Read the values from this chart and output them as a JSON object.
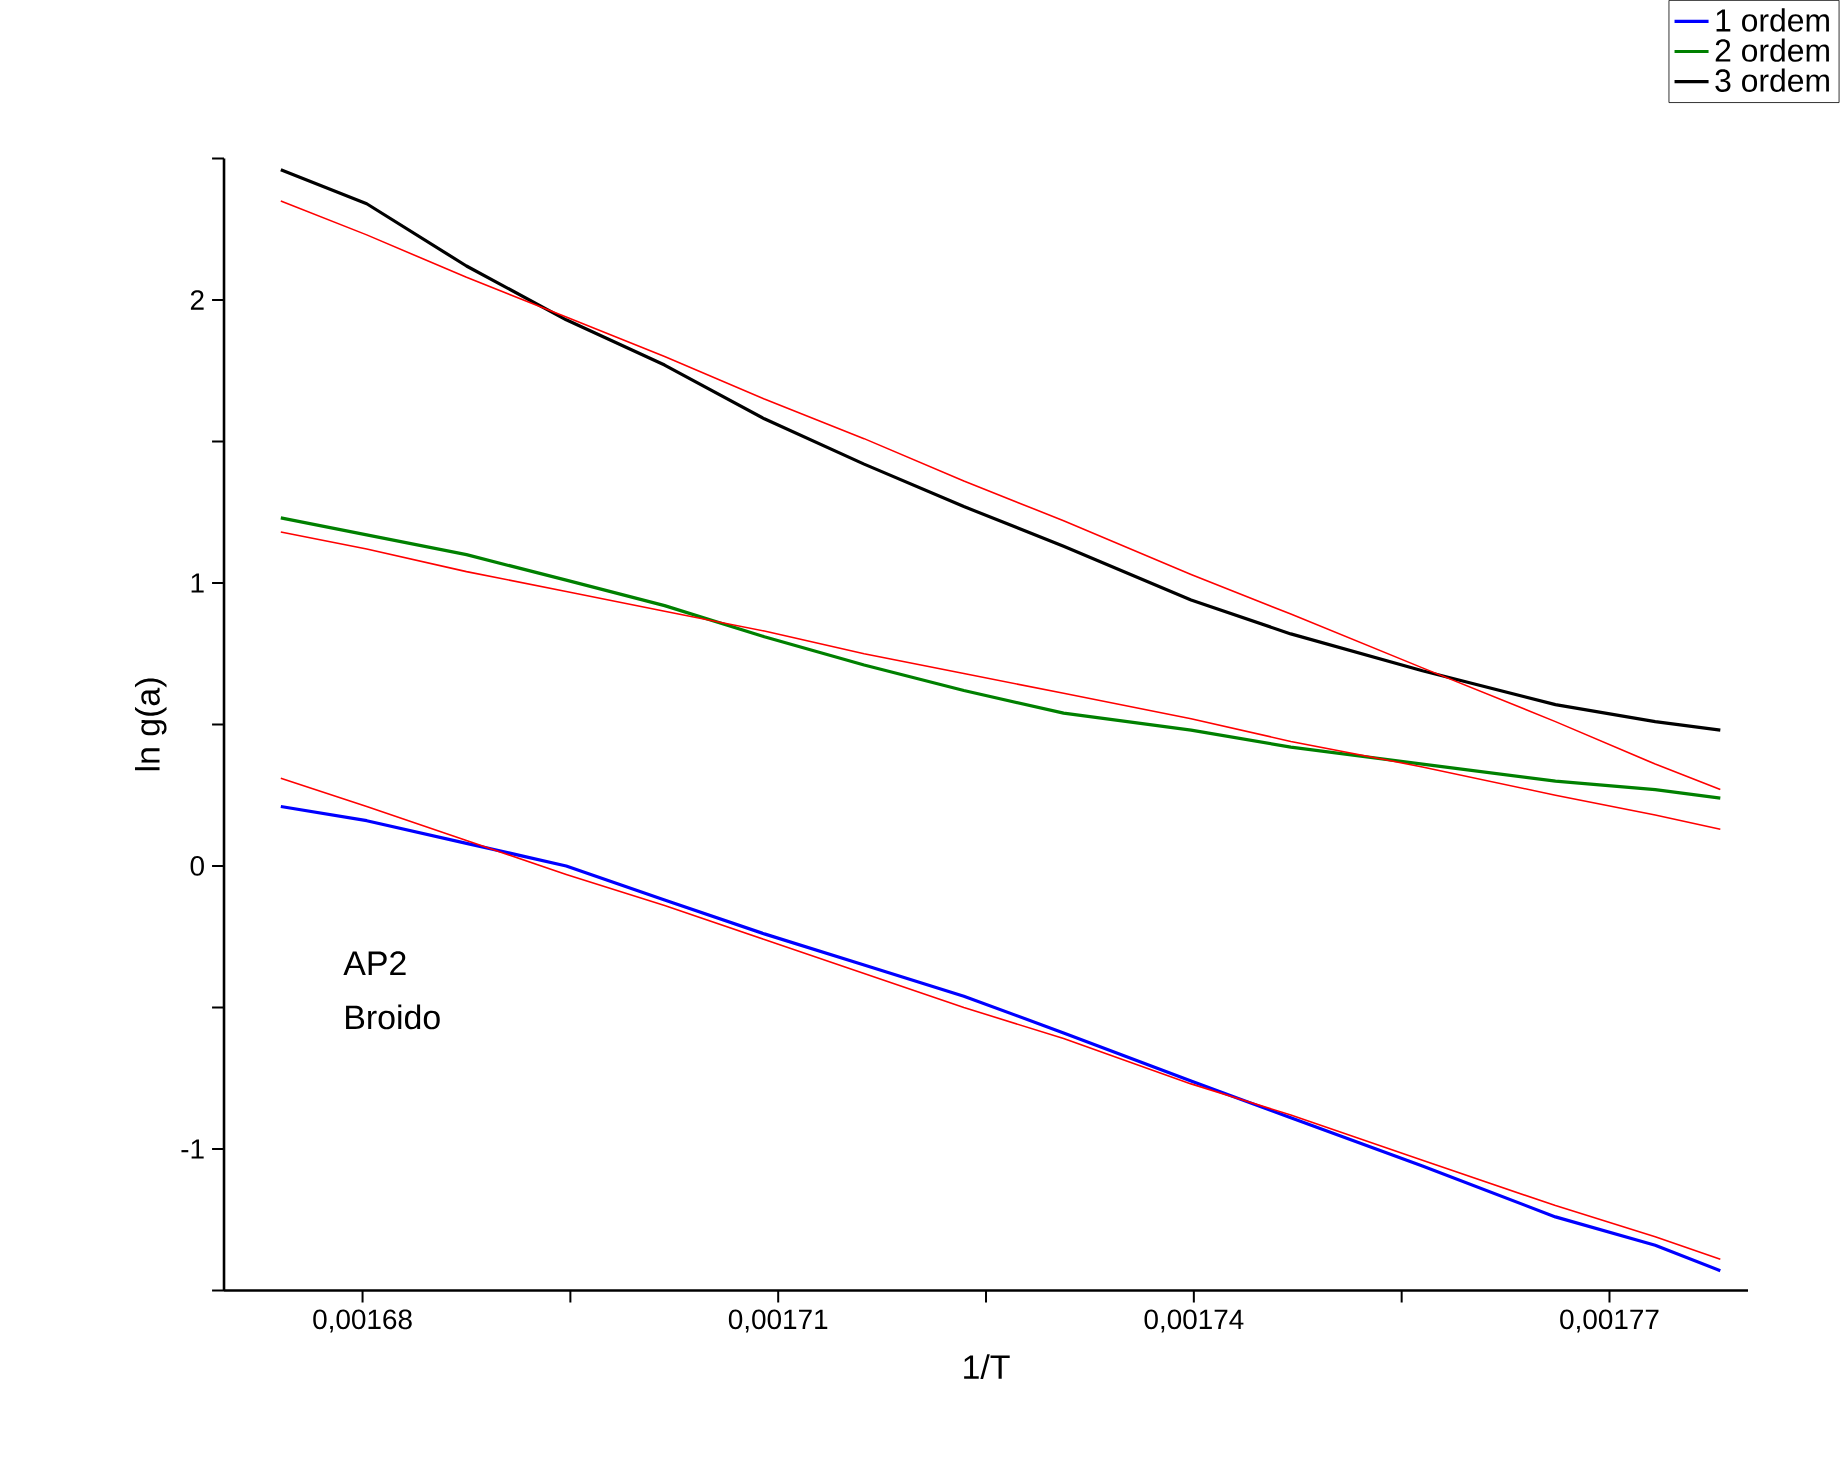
{
  "chart_data": {
    "type": "line",
    "xlabel": "1/T",
    "ylabel": "ln g(a)",
    "xlim": [
      0.00167,
      0.00178
    ],
    "ylim": [
      -1.5,
      2.5
    ],
    "xticks": [
      {
        "value": 0.00168,
        "label": "0,00168"
      },
      {
        "value": 0.001695,
        "label": null
      },
      {
        "value": 0.00171,
        "label": "0,00171"
      },
      {
        "value": 0.001725,
        "label": null
      },
      {
        "value": 0.00174,
        "label": "0,00174"
      },
      {
        "value": 0.001755,
        "label": null
      },
      {
        "value": 0.00177,
        "label": "0,00177"
      }
    ],
    "yticks": [
      {
        "value": -1.5,
        "label": null
      },
      -1,
      {
        "value": -0.5,
        "label": null
      },
      0,
      {
        "value": 0.5,
        "label": null
      },
      1,
      {
        "value": 1.5,
        "label": null
      },
      2,
      {
        "value": 2.5,
        "label": null
      }
    ],
    "x": [
      0.0016741,
      0.0016803,
      0.0016875,
      0.0016947,
      0.0017018,
      0.001709,
      0.0017162,
      0.0017234,
      0.0017306,
      0.0017398,
      0.001747,
      0.0017565,
      0.0017661,
      0.0017733,
      0.001778
    ],
    "series": [
      {
        "name": "1 ordem",
        "color": "#0000ff",
        "values": [
          0.21,
          0.16,
          0.08,
          0.0,
          -0.12,
          -0.24,
          -0.35,
          -0.46,
          -0.59,
          -0.76,
          -0.89,
          -1.06,
          -1.24,
          -1.34,
          -1.43
        ]
      },
      {
        "name": "2 ordem",
        "color": "#008000",
        "values": [
          1.23,
          1.17,
          1.1,
          1.01,
          0.92,
          0.81,
          0.71,
          0.62,
          0.54,
          0.48,
          0.42,
          0.36,
          0.3,
          0.27,
          0.24
        ]
      },
      {
        "name": "3 ordem",
        "color": "#000000",
        "values": [
          2.46,
          2.34,
          2.12,
          1.93,
          1.77,
          1.58,
          1.42,
          1.27,
          1.13,
          0.94,
          0.82,
          0.69,
          0.57,
          0.51,
          0.48
        ]
      },
      {
        "color": "#ff0000",
        "values": [
          0.31,
          0.21,
          0.09,
          -0.03,
          -0.14,
          -0.26,
          -0.38,
          -0.5,
          -0.61,
          -0.77,
          -0.88,
          -1.04,
          -1.2,
          -1.31,
          -1.39
        ]
      },
      {
        "color": "#ff0000",
        "values": [
          1.18,
          1.12,
          1.04,
          0.97,
          0.9,
          0.83,
          0.75,
          0.68,
          0.61,
          0.52,
          0.44,
          0.35,
          0.25,
          0.18,
          0.13
        ]
      },
      {
        "color": "#ff0000",
        "values": [
          2.35,
          2.23,
          2.08,
          1.94,
          1.8,
          1.65,
          1.51,
          1.36,
          1.22,
          1.03,
          0.89,
          0.7,
          0.51,
          0.36,
          0.27
        ]
      }
    ],
    "annotations": [
      "AP2",
      "Broido"
    ],
    "legend": "top right",
    "marker": "none",
    "line_style": "solid"
  }
}
